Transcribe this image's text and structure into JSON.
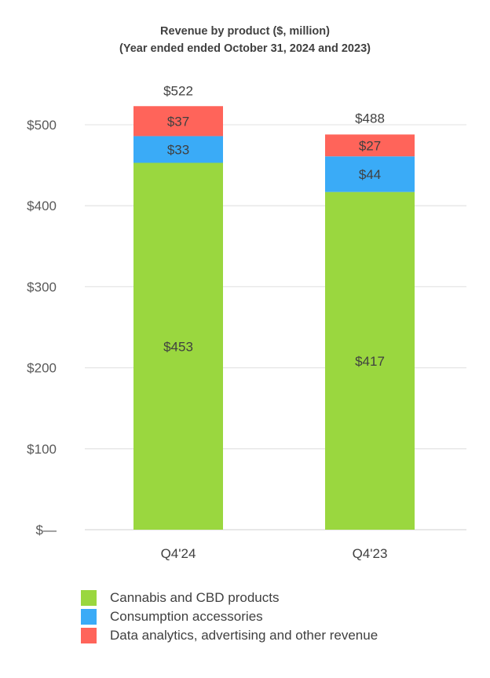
{
  "chart_data": {
    "type": "bar",
    "stacked": true,
    "title": [
      "Revenue by product ($, million)",
      "(Year ended ended October 31, 2024 and 2023)"
    ],
    "categories": [
      "Q4'24",
      "Q4'23"
    ],
    "series": [
      {
        "name": "Cannabis and CBD products",
        "values": [
          453,
          417
        ],
        "labels": [
          "$453",
          "$417"
        ],
        "color": "#9ad73f"
      },
      {
        "name": "Consumption accessories",
        "values": [
          33,
          44
        ],
        "labels": [
          "$33",
          "$44"
        ],
        "color": "#3aabf7"
      },
      {
        "name": "Data analytics, advertising and other revenue",
        "values": [
          37,
          27
        ],
        "labels": [
          "$37",
          "$27"
        ],
        "color": "#ff645a"
      }
    ],
    "totals": [
      522,
      488
    ],
    "total_labels": [
      "$522",
      "$488"
    ],
    "ylim": [
      0,
      500
    ],
    "yticks": [
      0,
      100,
      200,
      300,
      400,
      500
    ],
    "ytick_labels": [
      "$—",
      "$100",
      "$200",
      "$300",
      "$400",
      "$500"
    ],
    "xlabel": "",
    "ylabel": "",
    "grid": true,
    "legend_position": "bottom"
  }
}
